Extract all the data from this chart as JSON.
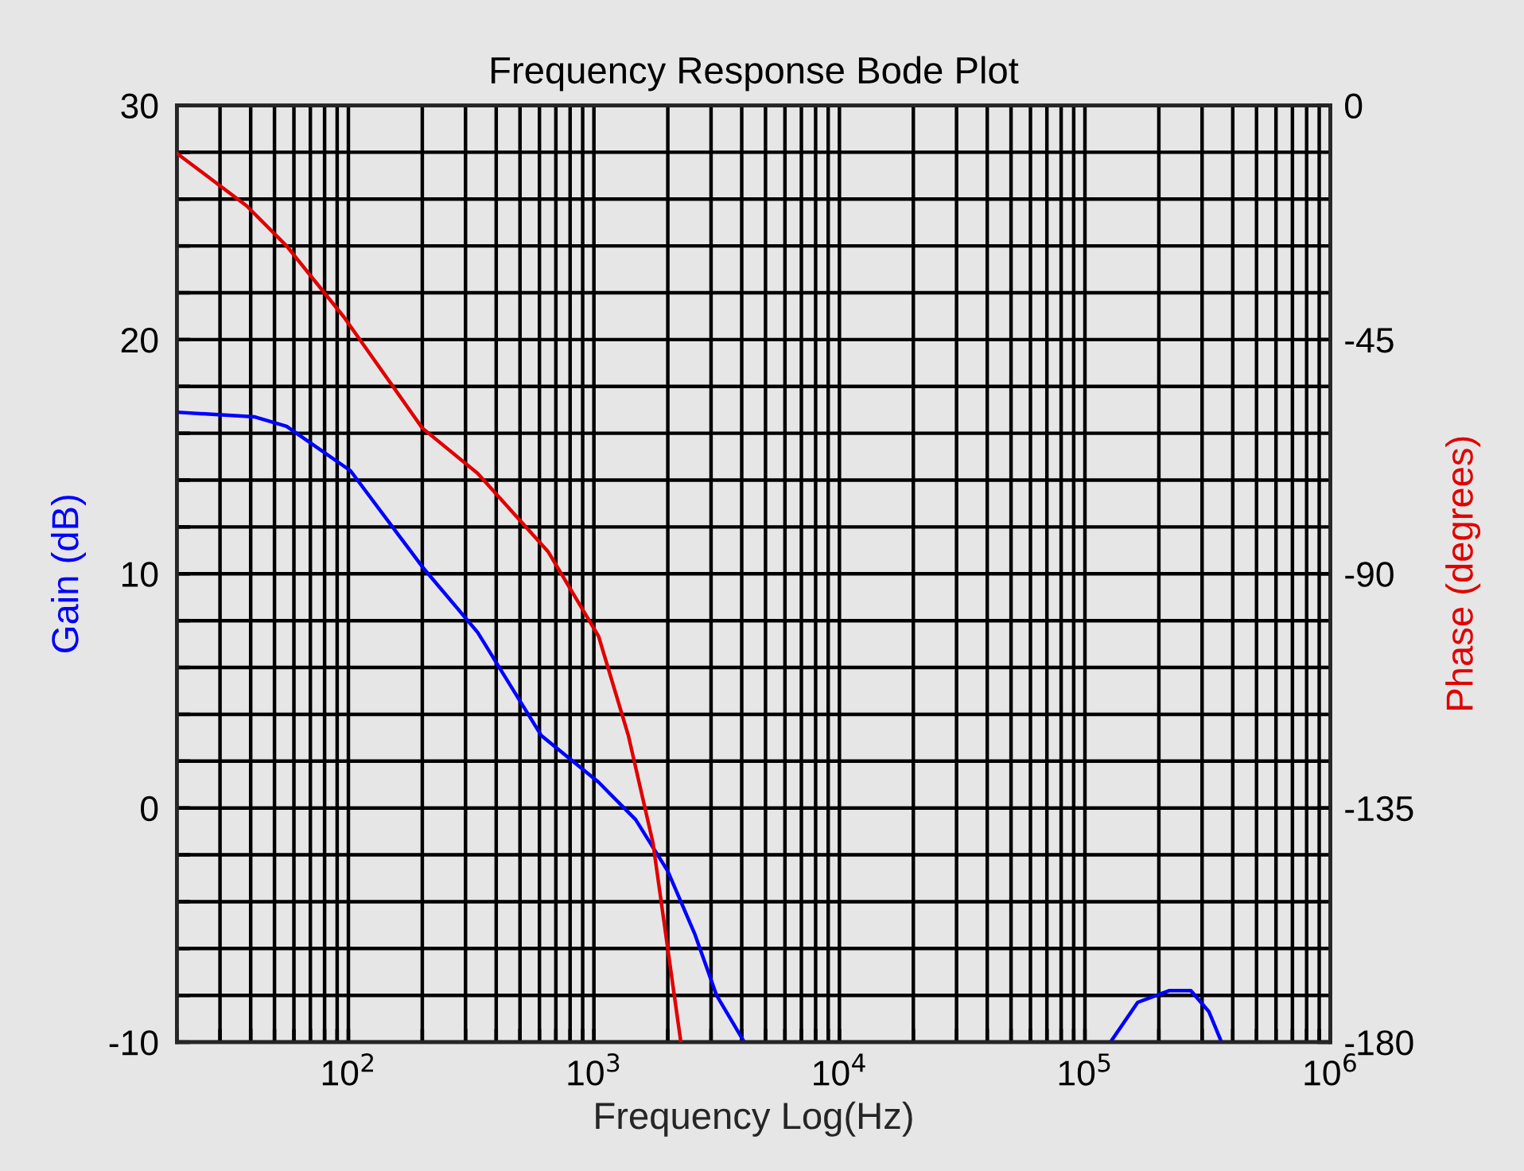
{
  "chart_data": {
    "type": "line",
    "title": "Frequency Response Bode Plot",
    "xlabel": "Frequency Log(Hz)",
    "ylabel": "Gain (dB)",
    "y2label": "Phase (degrees)",
    "log": "x",
    "grid": true,
    "marker": "none",
    "line_style": "solid",
    "xlim": [
      20,
      1000000
    ],
    "xticks": [
      {
        "value": 20,
        "label": null
      },
      {
        "value": 30,
        "label": null
      },
      {
        "value": 40,
        "label": null
      },
      {
        "value": 50,
        "label": null
      },
      {
        "value": 60,
        "label": null
      },
      {
        "value": 70,
        "label": null
      },
      {
        "value": 80,
        "label": null
      },
      {
        "value": 90,
        "label": null
      },
      {
        "value": 100,
        "label": "10$^{2}$"
      },
      {
        "value": 200,
        "label": null
      },
      {
        "value": 300,
        "label": null
      },
      {
        "value": 400,
        "label": null
      },
      {
        "value": 500,
        "label": null
      },
      {
        "value": 600,
        "label": null
      },
      {
        "value": 700,
        "label": null
      },
      {
        "value": 800,
        "label": null
      },
      {
        "value": 900,
        "label": null
      },
      {
        "value": 1000,
        "label": "10$^{3}$"
      },
      {
        "value": 2000,
        "label": null
      },
      {
        "value": 3000,
        "label": null
      },
      {
        "value": 4000,
        "label": null
      },
      {
        "value": 5000,
        "label": null
      },
      {
        "value": 6000,
        "label": null
      },
      {
        "value": 7000,
        "label": null
      },
      {
        "value": 8000,
        "label": null
      },
      {
        "value": 9000,
        "label": null
      },
      {
        "value": 10000,
        "label": "10$^{4}$"
      },
      {
        "value": 20000,
        "label": null
      },
      {
        "value": 30000,
        "label": null
      },
      {
        "value": 40000,
        "label": null
      },
      {
        "value": 50000,
        "label": null
      },
      {
        "value": 60000,
        "label": null
      },
      {
        "value": 70000,
        "label": null
      },
      {
        "value": 80000,
        "label": null
      },
      {
        "value": 90000,
        "label": null
      },
      {
        "value": 100000,
        "label": "10$^{5}$"
      },
      {
        "value": 200000,
        "label": null
      },
      {
        "value": 300000,
        "label": null
      },
      {
        "value": 400000,
        "label": null
      },
      {
        "value": 500000,
        "label": null
      },
      {
        "value": 600000,
        "label": null
      },
      {
        "value": 700000,
        "label": null
      },
      {
        "value": 800000,
        "label": null
      },
      {
        "value": 900000,
        "label": null
      },
      {
        "value": 1000000,
        "label": "10$^{6}$"
      }
    ],
    "ylim": [
      -10,
      30
    ],
    "yticks": [
      -10,
      {
        "value": -8,
        "label": null
      },
      {
        "value": -6,
        "label": null
      },
      {
        "value": -4,
        "label": null
      },
      {
        "value": -2,
        "label": null
      },
      0,
      {
        "value": 2,
        "label": null
      },
      {
        "value": 4,
        "label": null
      },
      {
        "value": 6,
        "label": null
      },
      {
        "value": 8,
        "label": null
      },
      10,
      {
        "value": 12,
        "label": null
      },
      {
        "value": 14,
        "label": null
      },
      {
        "value": 16,
        "label": null
      },
      {
        "value": 18,
        "label": null
      },
      20,
      {
        "value": 22,
        "label": null
      },
      {
        "value": 24,
        "label": null
      },
      {
        "value": 26,
        "label": null
      },
      {
        "value": 28,
        "label": null
      },
      30
    ],
    "y2lim": [
      -180,
      0
    ],
    "y2ticks": [
      -180,
      -135,
      -90,
      -45,
      0
    ],
    "series": [
      {
        "color": "#0000ff",
        "x": [
          20,
          41.6,
          56,
          102,
          200,
          336,
          610,
          1045,
          1480,
          2000,
          2580,
          3160,
          4100,
          10000,
          127000,
          164000,
          220000,
          270000,
          320000,
          360000
        ],
        "values": [
          16.9,
          16.7,
          16.3,
          14.4,
          10.3,
          7.5,
          3.1,
          1.1,
          -0.5,
          -2.7,
          -5.4,
          -8,
          -10,
          null,
          -10,
          -8.3,
          -7.8,
          -7.8,
          -8.7,
          -10
        ]
      },
      {
        "color": "#e00000",
        "axis": "y2",
        "x": [
          20,
          38.5,
          56,
          96,
          200,
          336,
          650,
          1045,
          1380,
          1740,
          2260
        ],
        "values": [
          -9.2,
          -19.3,
          -27,
          -40.7,
          -62,
          -70.7,
          -85.7,
          -102,
          -121,
          -141.7,
          -180
        ]
      }
    ]
  }
}
